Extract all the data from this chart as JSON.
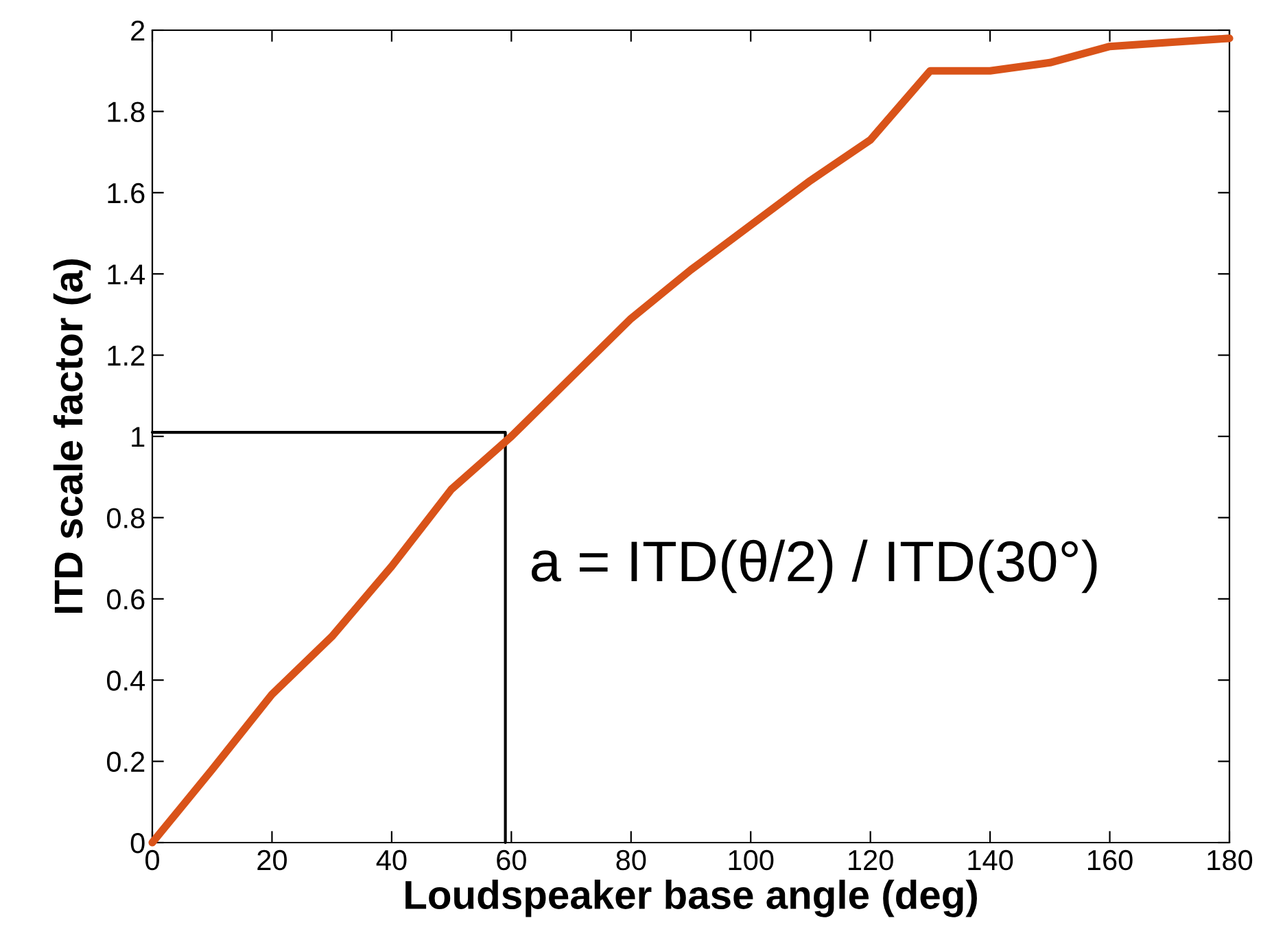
{
  "chart_data": {
    "type": "line",
    "xlabel": "Loudspeaker base angle (deg)",
    "ylabel": "ITD scale factor (a)",
    "xlim": [
      0,
      180
    ],
    "ylim": [
      0,
      2
    ],
    "xticks": [
      0,
      20,
      40,
      60,
      80,
      100,
      120,
      140,
      160,
      180
    ],
    "yticks": [
      0,
      0.2,
      0.4,
      0.6,
      0.8,
      1,
      1.2,
      1.4,
      1.6,
      1.8,
      2
    ],
    "grid": false,
    "legend": false,
    "line_style": "solid",
    "series": [
      {
        "color": "#d95319",
        "x": [
          0,
          10,
          20,
          30,
          40,
          50,
          60,
          70,
          80,
          90,
          100,
          110,
          120,
          130,
          140,
          150,
          160,
          170,
          180
        ],
        "values": [
          0,
          0.18,
          0.365,
          0.507,
          0.68,
          0.87,
          1.0,
          1.145,
          1.29,
          1.41,
          1.52,
          1.63,
          1.73,
          1.9,
          1.9,
          1.92,
          1.96,
          1.97,
          1.98
        ]
      },
      {
        "color": "#000000",
        "x": [
          0,
          59,
          59
        ],
        "values": [
          1.01,
          1.01,
          0
        ]
      }
    ],
    "annotations": [
      "a = ITD(θ/2) / ITD(30°)"
    ]
  }
}
